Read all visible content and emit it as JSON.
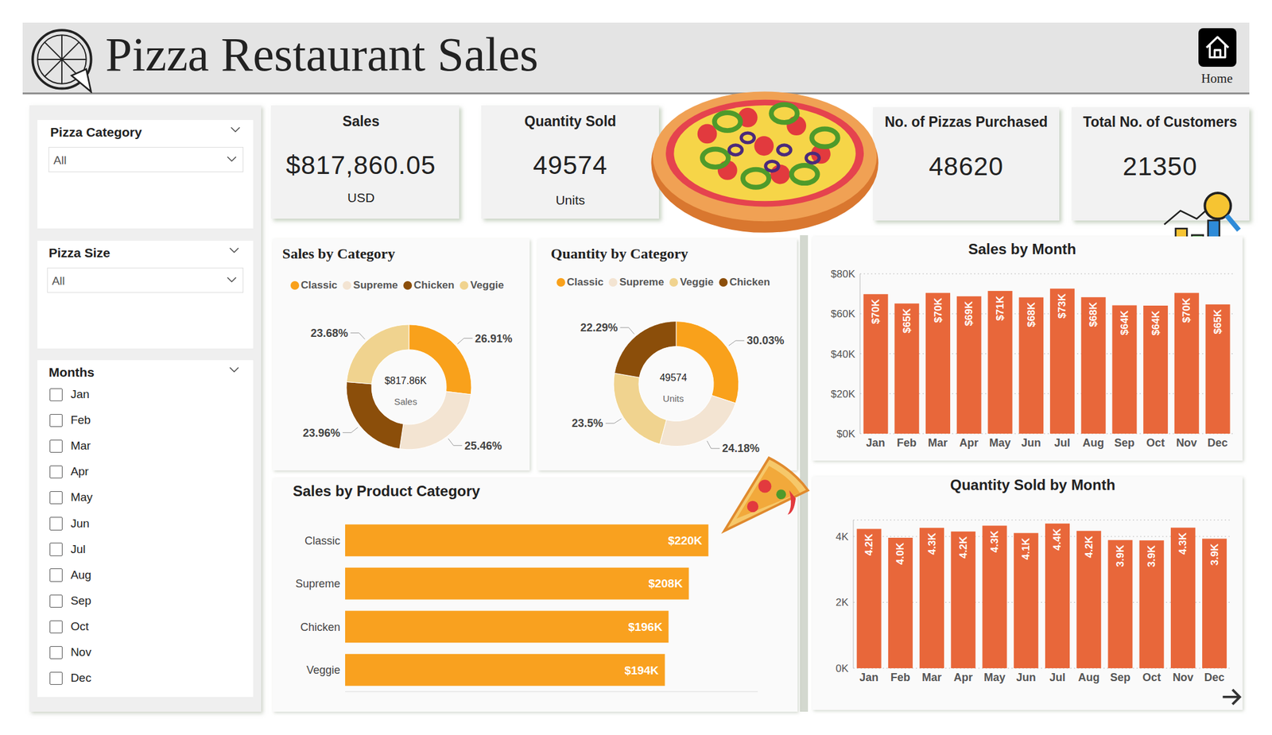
{
  "header": {
    "title": "Pizza Restaurant Sales",
    "button": "Home"
  },
  "filters": [
    {
      "title": "Pizza Category",
      "selected": "All"
    },
    {
      "title": "Pizza Size",
      "selected": "All"
    },
    {
      "title": "Months",
      "options": [
        "Jan",
        "Feb",
        "Mar",
        "Apr",
        "May",
        "Jun",
        "Jul",
        "Aug",
        "Sep",
        "Oct",
        "Nov",
        "Dec"
      ]
    }
  ],
  "kpis": [
    {
      "title": "Sales",
      "value": "$817,860.05",
      "unit": "USD"
    },
    {
      "title": "Quantity Sold",
      "value": "49574",
      "unit": "Units"
    },
    {
      "title": "No. of Pizzas Purchased",
      "value": "48620"
    },
    {
      "title": "Total No. of Customers",
      "value": "21350"
    }
  ],
  "chart_data": [
    {
      "type": "donut",
      "title": "Sales by Category",
      "categories": [
        "Classic",
        "Supreme",
        "Chicken",
        "Veggie"
      ],
      "values": [
        26.91,
        25.46,
        23.96,
        23.68
      ],
      "value_labels": [
        "26.91%",
        "25.46%",
        "23.96%",
        "23.68%"
      ],
      "colors": [
        "#F9A11B",
        "#F3E4D2",
        "#8B4E0A",
        "#F0D38F"
      ],
      "center_text": [
        "$817.86K",
        "Sales"
      ],
      "legend": "top",
      "data_labels": true
    },
    {
      "type": "donut",
      "title": "Quantity by Category",
      "categories": [
        "Classic",
        "Supreme",
        "Veggie",
        "Chicken"
      ],
      "values": [
        30.03,
        24.18,
        23.5,
        22.29
      ],
      "value_labels": [
        "30.03%",
        "24.18%",
        "23.5%",
        "22.29%"
      ],
      "colors": [
        "#F9A11B",
        "#F3E4D2",
        "#F0D38F",
        "#8B4E0A"
      ],
      "center_text": [
        "49574",
        "Units"
      ],
      "legend": "top",
      "data_labels": true
    },
    {
      "type": "bar",
      "title": "Sales by Product Category",
      "orientation": "horizontal",
      "categories": [
        "Classic",
        "Supreme",
        "Chicken",
        "Veggie"
      ],
      "values": [
        220053,
        208197,
        195920,
        193690
      ],
      "value_labels": [
        "$220K",
        "$208K",
        "$196K",
        "$194K"
      ],
      "color": "#F9A11F",
      "xlim": [
        0,
        250000
      ],
      "tick_labels": "y",
      "data_labels": true
    },
    {
      "type": "bar",
      "title": "Sales by Month",
      "categories": [
        "Jan",
        "Feb",
        "Mar",
        "Apr",
        "May",
        "Jun",
        "Jul",
        "Aug",
        "Sep",
        "Oct",
        "Nov",
        "Dec"
      ],
      "values": [
        69793,
        65160,
        70397,
        68737,
        71403,
        68230,
        72558,
        68278,
        64180,
        64028,
        70395,
        64701
      ],
      "value_labels": [
        "$70K",
        "$65K",
        "$70K",
        "$69K",
        "$71K",
        "$68K",
        "$73K",
        "$68K",
        "$64K",
        "$64K",
        "$70K",
        "$65K"
      ],
      "color": "#E8673A",
      "ylim": [
        0,
        80000
      ],
      "yticks": [
        {
          "value": 0,
          "label": "$0K"
        },
        {
          "value": 20000,
          "label": "$20K"
        },
        {
          "value": 40000,
          "label": "$40K"
        },
        {
          "value": 60000,
          "label": "$60K"
        },
        {
          "value": 80000,
          "label": "$80K"
        }
      ],
      "grid": true,
      "data_labels": true
    },
    {
      "type": "bar",
      "title": "Quantity Sold by Month",
      "categories": [
        "Jan",
        "Feb",
        "Mar",
        "Apr",
        "May",
        "Jun",
        "Jul",
        "Aug",
        "Sep",
        "Oct",
        "Nov",
        "Dec"
      ],
      "values": [
        4232,
        3961,
        4261,
        4151,
        4328,
        4107,
        4392,
        4168,
        3890,
        3883,
        4266,
        3935
      ],
      "value_labels": [
        "4.2K",
        "4.0K",
        "4.3K",
        "4.2K",
        "4.3K",
        "4.1K",
        "4.4K",
        "4.2K",
        "3.9K",
        "3.9K",
        "4.3K",
        "3.9K"
      ],
      "color": "#E8673A",
      "ylim": [
        0,
        4500
      ],
      "yticks": [
        {
          "value": 0,
          "label": "0K"
        },
        {
          "value": 2000,
          "label": "2K"
        },
        {
          "value": 4000,
          "label": "4K"
        }
      ],
      "grid": true,
      "data_labels": true
    }
  ]
}
